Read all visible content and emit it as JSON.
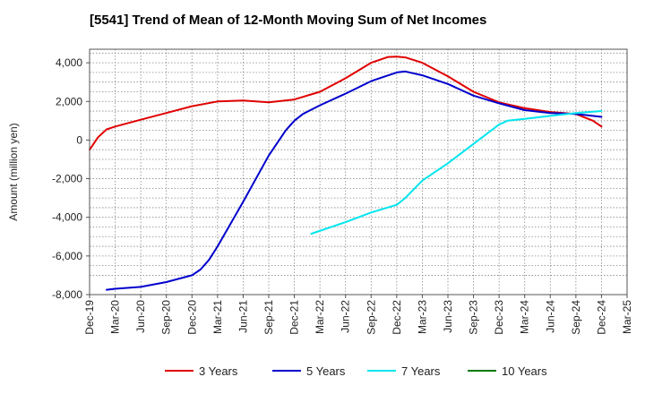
{
  "chart_data": {
    "type": "line",
    "title": "[5541]  Trend of Mean of 12-Month Moving Sum of Net Incomes",
    "ylabel": "Amount (million yen)",
    "xlabel": "",
    "ylim": [
      -8000,
      4700
    ],
    "grid": true,
    "legend_position": "bottom",
    "yticks": [
      4000,
      2000,
      0,
      -2000,
      -4000,
      -6000,
      -8000
    ],
    "ytick_labels": [
      "4,000",
      "2,000",
      "0",
      "-2,000",
      "-4,000",
      "-6,000",
      "-8,000"
    ],
    "xticks": [
      "Dec-19",
      "Mar-20",
      "Jun-20",
      "Sep-20",
      "Dec-20",
      "Mar-21",
      "Jun-21",
      "Sep-21",
      "Dec-21",
      "Mar-22",
      "Jun-22",
      "Sep-22",
      "Dec-22",
      "Mar-23",
      "Jun-23",
      "Sep-23",
      "Dec-23",
      "Mar-24",
      "Jun-24",
      "Sep-24",
      "Dec-24",
      "Mar-25"
    ],
    "series": [
      {
        "name": "3 Years",
        "color": "#e00000",
        "x": [
          "Dec-19",
          "Jan-20",
          "Feb-20",
          "Mar-20",
          "Jun-20",
          "Sep-20",
          "Dec-20",
          "Mar-21",
          "Jun-21",
          "Sep-21",
          "Dec-21",
          "Mar-22",
          "Jun-22",
          "Sep-22",
          "Nov-22",
          "Dec-22",
          "Jan-23",
          "Mar-23",
          "Jun-23",
          "Sep-23",
          "Dec-23",
          "Mar-24",
          "Jun-24",
          "Sep-24",
          "Nov-24",
          "Dec-24"
        ],
        "values": [
          -500,
          150,
          550,
          700,
          1050,
          1400,
          1750,
          2000,
          2050,
          1950,
          2100,
          2500,
          3200,
          4000,
          4300,
          4320,
          4280,
          4000,
          3300,
          2500,
          1950,
          1650,
          1450,
          1350,
          1000,
          700
        ]
      },
      {
        "name": "5 Years",
        "color": "#0000cc",
        "x": [
          "Feb-20",
          "Mar-20",
          "Jun-20",
          "Sep-20",
          "Dec-20",
          "Jan-21",
          "Feb-21",
          "Mar-21",
          "Jun-21",
          "Sep-21",
          "Nov-21",
          "Dec-21",
          "Jan-22",
          "Mar-22",
          "Jun-22",
          "Sep-22",
          "Dec-22",
          "Jan-23",
          "Mar-23",
          "Jun-23",
          "Sep-23",
          "Dec-23",
          "Mar-24",
          "Jun-24",
          "Sep-24",
          "Dec-24"
        ],
        "values": [
          -7750,
          -7700,
          -7600,
          -7350,
          -7000,
          -6700,
          -6200,
          -5500,
          -3200,
          -800,
          500,
          1000,
          1350,
          1800,
          2400,
          3050,
          3500,
          3550,
          3350,
          2900,
          2300,
          1900,
          1550,
          1400,
          1350,
          1200
        ]
      },
      {
        "name": "7 Years",
        "color": "#00e5ee",
        "x": [
          "Feb-22",
          "Jun-22",
          "Sep-22",
          "Dec-22",
          "Jan-23",
          "Mar-23",
          "Jun-23",
          "Sep-23",
          "Dec-23",
          "Jan-24",
          "Mar-24",
          "Jun-24",
          "Sep-24",
          "Dec-24"
        ],
        "values": [
          -4850,
          -4250,
          -3750,
          -3350,
          -3000,
          -2100,
          -1200,
          -200,
          800,
          1000,
          1100,
          1250,
          1400,
          1500
        ]
      },
      {
        "name": "10 Years",
        "color": "#007a00",
        "x": [],
        "values": []
      }
    ]
  }
}
